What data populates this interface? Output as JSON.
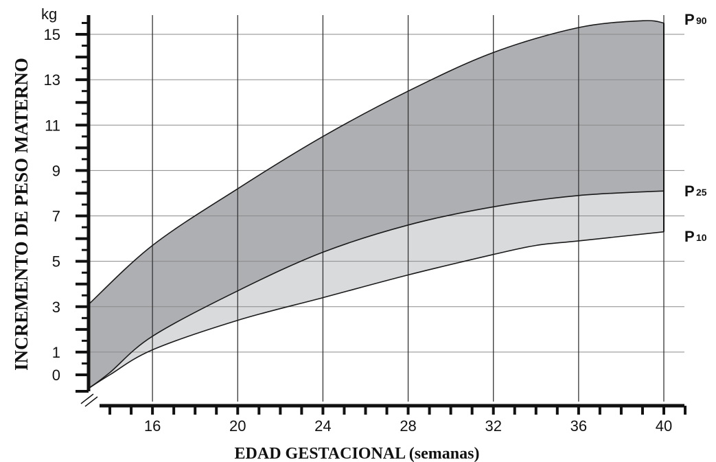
{
  "chart_data": {
    "type": "area",
    "ylabel": "INCREMENTO DE PESO MATERNO",
    "xlabel": "EDAD GESTACIONAL (semanas)",
    "y_unit": "kg",
    "x_ticks": [
      "16",
      "20",
      "24",
      "28",
      "32",
      "36",
      "40"
    ],
    "y_ticks": [
      "0",
      "1",
      "3",
      "5",
      "7",
      "9",
      "11",
      "13",
      "15"
    ],
    "xlim": [
      12.5,
      41
    ],
    "ylim": [
      -0.8,
      16
    ],
    "grid": true,
    "fill_colors": {
      "p25_p90": "#aeafb3",
      "p10_p25": "#d9dadc"
    },
    "series": [
      {
        "name": "P90",
        "label_main": "P",
        "label_sub": "90",
        "x": [
          13,
          16,
          20,
          24,
          28,
          32,
          36,
          39,
          40
        ],
        "y": [
          3.1,
          5.7,
          8.2,
          10.5,
          12.5,
          14.2,
          15.3,
          15.6,
          15.5
        ]
      },
      {
        "name": "P25",
        "label_main": "P",
        "label_sub": "25",
        "x": [
          13,
          14,
          16,
          20,
          24,
          28,
          32,
          36,
          40
        ],
        "y": [
          -0.6,
          0.1,
          1.7,
          3.7,
          5.4,
          6.6,
          7.4,
          7.9,
          8.1
        ]
      },
      {
        "name": "P10",
        "label_main": "P",
        "label_sub": "10",
        "x": [
          13,
          14,
          16,
          20,
          24,
          28,
          32,
          34,
          36,
          40
        ],
        "y": [
          -0.6,
          0.0,
          1.1,
          2.4,
          3.4,
          4.4,
          5.3,
          5.7,
          5.9,
          6.3
        ]
      }
    ]
  }
}
